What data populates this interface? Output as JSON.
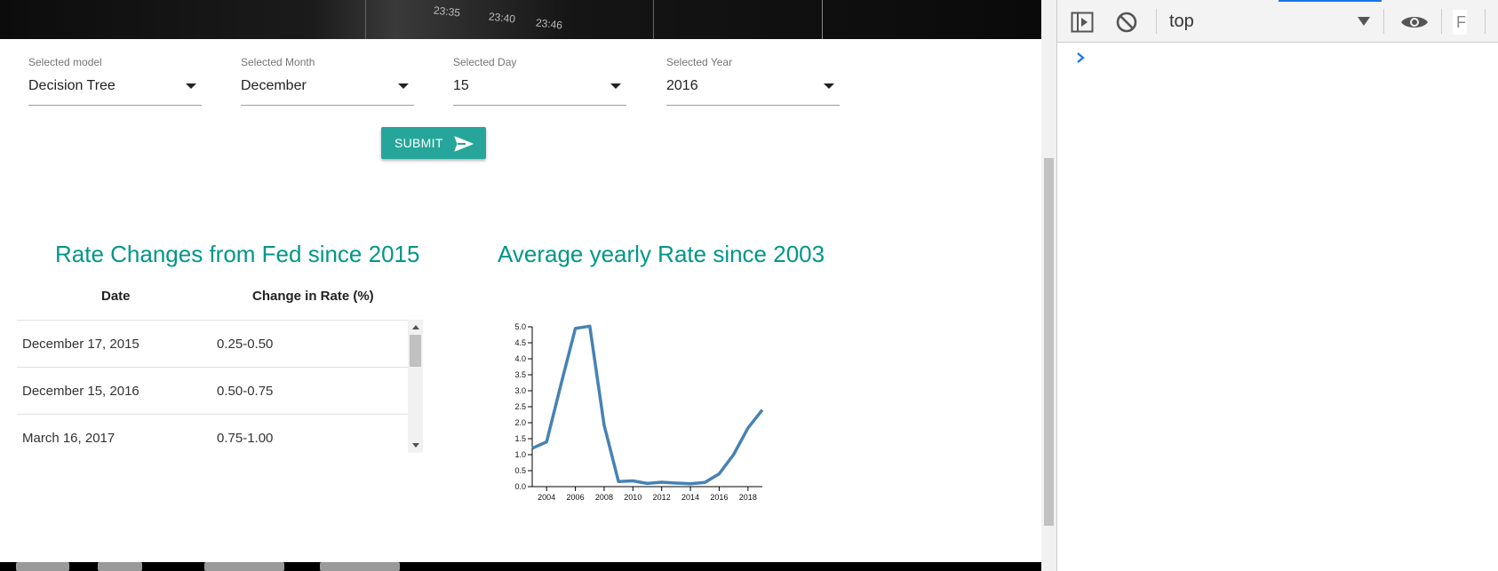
{
  "hero": {
    "time_ticks": [
      "23:35",
      "23:40",
      "23:46"
    ]
  },
  "form": {
    "model": {
      "label": "Selected model",
      "value": "Decision Tree"
    },
    "month": {
      "label": "Selected Month",
      "value": "December"
    },
    "day": {
      "label": "Selected Day",
      "value": "15"
    },
    "year": {
      "label": "Selected Year",
      "value": "2016"
    },
    "submit_label": "SUBMIT",
    "accent_color": "#26a69a"
  },
  "rate_table": {
    "title": "Rate Changes from Fed since 2015",
    "headers": [
      "Date",
      "Change in Rate (%)"
    ],
    "rows": [
      {
        "date": "December 17, 2015",
        "change": "0.25-0.50"
      },
      {
        "date": "December 15, 2016",
        "change": "0.50-0.75"
      },
      {
        "date": "March 16, 2017",
        "change": "0.75-1.00"
      }
    ]
  },
  "chart_section": {
    "title": "Average yearly Rate since 2003"
  },
  "chart_data": {
    "type": "line",
    "title": "",
    "xlabel": "",
    "ylabel": "",
    "x": [
      2003,
      2004,
      2005,
      2006,
      2007,
      2008,
      2009,
      2010,
      2011,
      2012,
      2013,
      2014,
      2015,
      2016,
      2017,
      2018,
      2019
    ],
    "series": [
      {
        "values": [
          1.2,
          1.4,
          3.2,
          4.95,
          5.02,
          1.93,
          0.16,
          0.18,
          0.1,
          0.14,
          0.11,
          0.09,
          0.13,
          0.4,
          1.0,
          1.83,
          2.4
        ]
      }
    ],
    "xticks": [
      2004,
      2006,
      2008,
      2010,
      2012,
      2014,
      2016,
      2018
    ],
    "yticks": [
      0.0,
      0.5,
      1.0,
      1.5,
      2.0,
      2.5,
      3.0,
      3.5,
      4.0,
      4.5,
      5.0
    ],
    "xlim": [
      2003,
      2019
    ],
    "ylim": [
      0,
      5
    ],
    "grid": false,
    "line_color": "#4682b4"
  },
  "devtools": {
    "context": "top",
    "filter_placeholder": "F",
    "accent_color": "#1a73e8"
  }
}
